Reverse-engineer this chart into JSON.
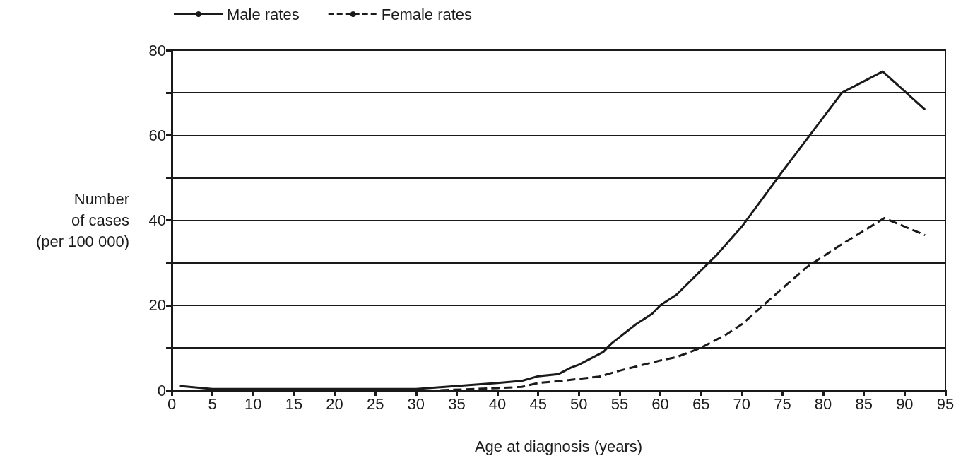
{
  "chart_data": {
    "type": "line",
    "xlabel": "Age at diagnosis (years)",
    "ylabel": "Number\nof cases\n(per 100 000)",
    "xlim": [
      0,
      95
    ],
    "xticks": [
      0,
      5,
      10,
      15,
      20,
      25,
      30,
      35,
      40,
      45,
      50,
      55,
      60,
      65,
      70,
      75,
      80,
      85,
      90,
      95
    ],
    "ylim": [
      0,
      80
    ],
    "yticks": [
      0,
      {
        "value": 10,
        "label": null
      },
      20,
      {
        "value": 30,
        "label": null
      },
      40,
      {
        "value": 50,
        "label": null
      },
      60,
      {
        "value": 70,
        "label": null
      },
      80
    ],
    "grid": "y",
    "legend": "top left",
    "marker": "none",
    "series": [
      {
        "name": "Male rates",
        "color": "#1a1a1a",
        "line_style": "solid",
        "x": [
          1,
          5,
          30,
          35,
          40,
          43,
          45,
          47.5,
          49,
          50,
          51,
          52,
          53,
          54,
          57,
          59,
          60,
          62,
          67,
          70,
          75,
          82.3,
          87.3,
          92.5
        ],
        "values": [
          1,
          0.3,
          0.3,
          1,
          1.7,
          2.2,
          3.3,
          3.8,
          5.3,
          6,
          7,
          8,
          9,
          11,
          15.5,
          18,
          20,
          22.5,
          32,
          38.5,
          51.5,
          70,
          75,
          66
        ]
      },
      {
        "name": "Female rates",
        "color": "#1a1a1a",
        "line_style": "dashed",
        "x": [
          33,
          40,
          43,
          45,
          48,
          50,
          52.5,
          55,
          60,
          62,
          65,
          68,
          70,
          75,
          78,
          82,
          87.5,
          92.5
        ],
        "values": [
          0,
          0.5,
          0.8,
          1.7,
          2.2,
          2.7,
          3.2,
          4.6,
          7,
          7.8,
          10,
          13,
          15.5,
          24,
          29,
          34,
          40.5,
          36.5
        ]
      }
    ]
  }
}
